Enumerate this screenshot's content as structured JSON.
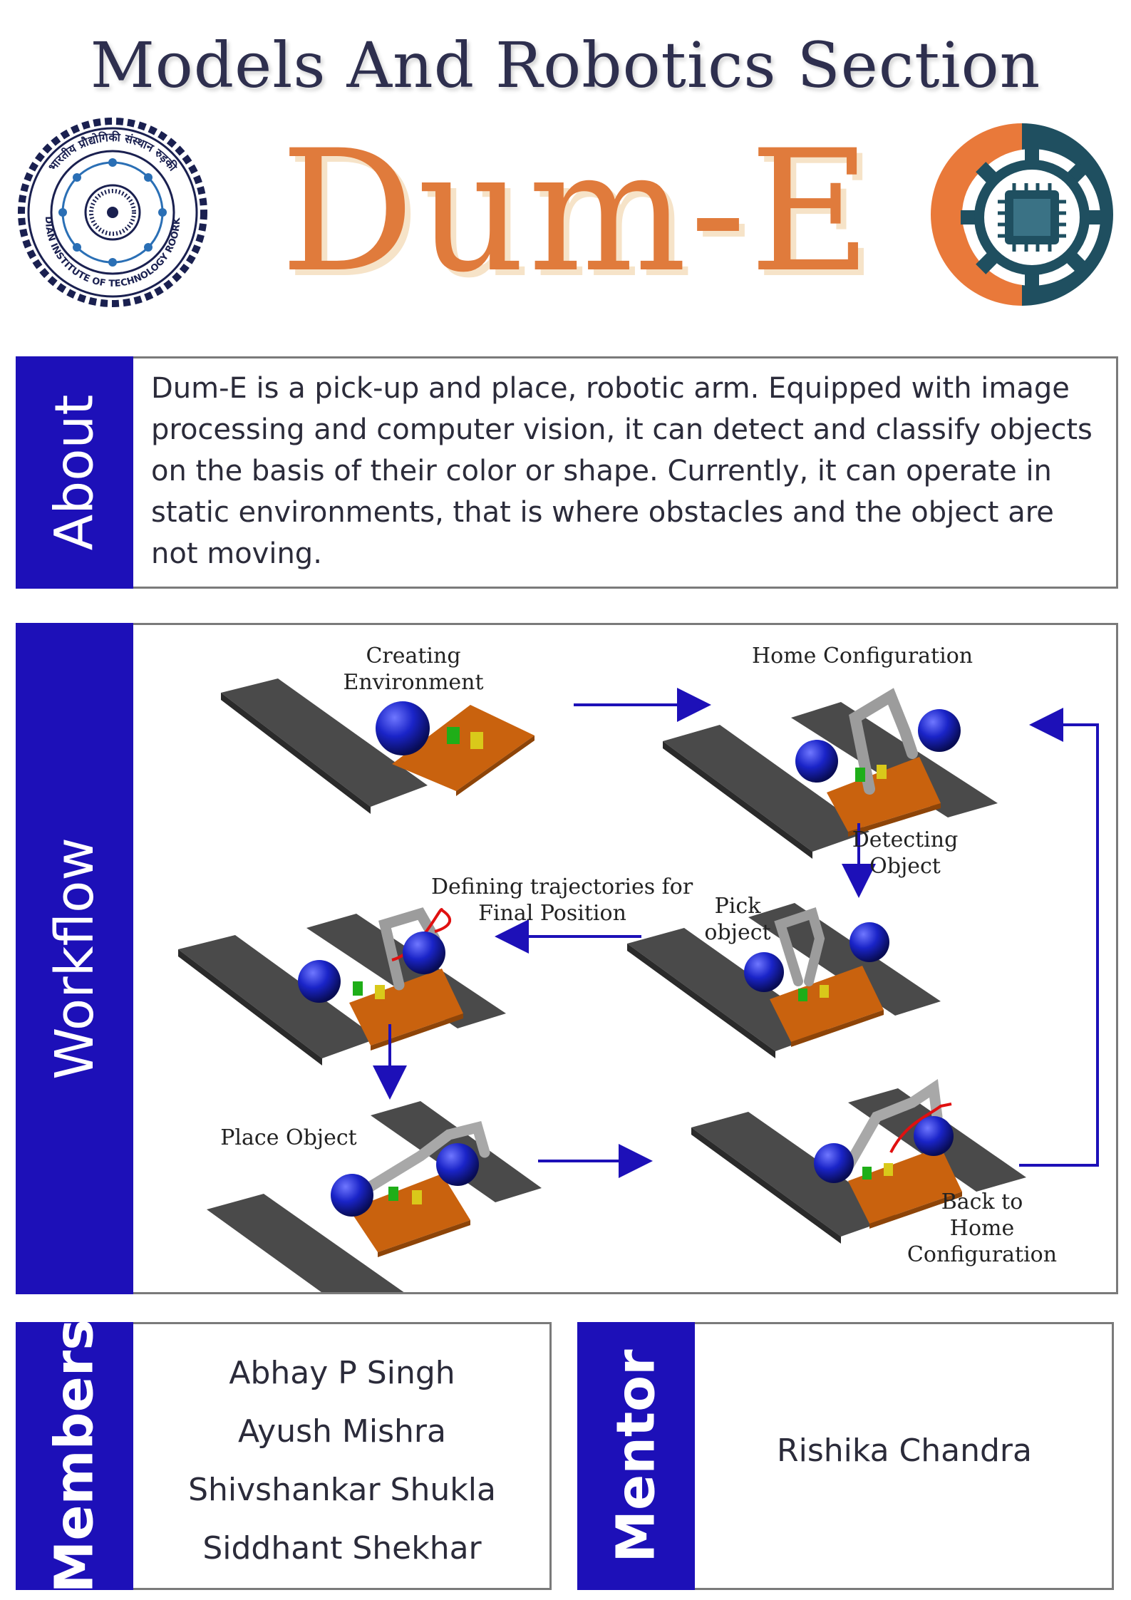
{
  "header": {
    "section": "Models And Robotics Section",
    "project": "Dum-E"
  },
  "logos": {
    "left": {
      "name": "iit-roorkee-seal",
      "text_top": "भारतीय प्रौद्योगिकी संस्थान रुड़की",
      "text_bottom": "INDIAN INSTITUTE OF TECHNOLOGY ROORKEE"
    },
    "right": {
      "name": "robotics-club-gear-chip-logo"
    }
  },
  "about": {
    "label": "About",
    "text": "Dum-E is a pick-up and place, robotic arm. Equipped with image processing and computer vision, it can detect and classify objects on the basis of their color or shape. Currently, it can operate in static environments, that is where obstacles and the object are not moving."
  },
  "workflow": {
    "label": "Workflow",
    "steps": {
      "creating": [
        "Creating",
        "Environment"
      ],
      "home": [
        "Home Configuration"
      ],
      "detecting": [
        "Detecting",
        "Object"
      ],
      "trajectories": [
        "Defining trajectories for",
        "Final Position"
      ],
      "pick": [
        "Pick",
        "object"
      ],
      "place": [
        "Place Object"
      ],
      "back": [
        "Back to",
        "Home",
        "Configuration"
      ]
    }
  },
  "members": {
    "label": "Members",
    "names": [
      "Abhay P Singh",
      "Ayush Mishra",
      "Shivshankar Shukla",
      "Siddhant Shekhar"
    ]
  },
  "mentor": {
    "label": "Mentor",
    "name": "Rishika Chandra"
  },
  "colors": {
    "band": "#1d10b8",
    "accent_orange": "#e07b3c",
    "title_navy": "#2e2f4e",
    "arrow": "#1d10b8"
  }
}
